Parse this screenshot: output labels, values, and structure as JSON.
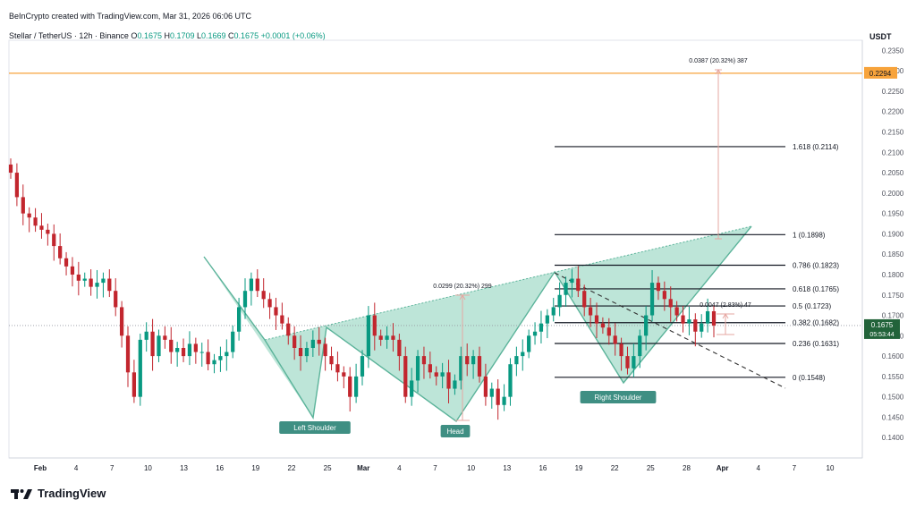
{
  "header": {
    "credit": "BeInCrypto created with TradingView.com, Mar 31, 2026 06:06 UTC",
    "symbol": "Stellar / TetherUS · 12h · Binance",
    "ohlc": [
      {
        "k": "O",
        "v": "0.1675"
      },
      {
        "k": "H",
        "v": "0.1709"
      },
      {
        "k": "L",
        "v": "0.1669"
      },
      {
        "k": "C",
        "v": "0.1675"
      }
    ],
    "change": "+0.0001 (+0.06%)",
    "unit": "USDT"
  },
  "logo": {
    "text": "TradingView"
  },
  "colors": {
    "up": "#089981",
    "down": "#c2262e",
    "pattern_fill": "#a7dccb",
    "pattern_stroke": "#5bb39a",
    "target_line": "#f7a33b",
    "measure": "#e6a7a2",
    "fib": "#131722"
  },
  "chart_data": {
    "type": "candlestick",
    "ylim": [
      0.135,
      0.2375
    ],
    "y_ticks": [
      "0.1400",
      "0.1450",
      "0.1500",
      "0.1550",
      "0.1600",
      "0.1650",
      "0.1700",
      "0.1750",
      "0.1800",
      "0.1850",
      "0.1900",
      "0.1950",
      "0.2000",
      "0.2050",
      "0.2100",
      "0.2150",
      "0.2200",
      "0.2250",
      "0.2300",
      "0.2350"
    ],
    "x_ticks": [
      "Feb",
      "4",
      "7",
      "10",
      "13",
      "16",
      "19",
      "22",
      "25",
      "Mar",
      "4",
      "7",
      "10",
      "13",
      "16",
      "19",
      "22",
      "25",
      "28",
      "Apr",
      "4",
      "7",
      "10"
    ],
    "closes": [
      0.205,
      0.199,
      0.195,
      0.194,
      0.192,
      0.191,
      0.19,
      0.187,
      0.184,
      0.182,
      0.18,
      0.1785,
      0.179,
      0.177,
      0.178,
      0.179,
      0.176,
      0.172,
      0.165,
      0.156,
      0.15,
      0.164,
      0.166,
      0.16,
      0.165,
      0.164,
      0.161,
      0.162,
      0.16,
      0.163,
      0.161,
      0.161,
      0.158,
      0.159,
      0.16,
      0.161,
      0.166,
      0.172,
      0.176,
      0.179,
      0.176,
      0.174,
      0.172,
      0.17,
      0.168,
      0.165,
      0.162,
      0.16,
      0.162,
      0.164,
      0.163,
      0.16,
      0.158,
      0.156,
      0.155,
      0.15,
      0.155,
      0.16,
      0.17,
      0.165,
      0.164,
      0.165,
      0.164,
      0.16,
      0.15,
      0.154,
      0.16,
      0.158,
      0.156,
      0.155,
      0.156,
      0.152,
      0.154,
      0.16,
      0.158,
      0.16,
      0.155,
      0.15,
      0.152,
      0.148,
      0.15,
      0.158,
      0.16,
      0.161,
      0.165,
      0.166,
      0.168,
      0.17,
      0.172,
      0.175,
      0.178,
      0.179,
      0.176,
      0.172,
      0.17,
      0.168,
      0.167,
      0.165,
      0.163,
      0.16,
      0.157,
      0.16,
      0.165,
      0.17,
      0.178,
      0.176,
      0.174,
      0.172,
      0.17,
      0.168,
      0.169,
      0.166,
      0.168,
      0.171,
      0.1675
    ],
    "target_price": "0.2294",
    "last_price": "0.1675",
    "countdown": "05:53:44",
    "fib_levels": [
      {
        "label": "1.618 (0.2114)",
        "value": 0.2114
      },
      {
        "label": "1 (0.1898)",
        "value": 0.1898
      },
      {
        "label": "0.786 (0.1823)",
        "value": 0.1823
      },
      {
        "label": "0.618 (0.1765)",
        "value": 0.1765
      },
      {
        "label": "0.5 (0.1723)",
        "value": 0.1723
      },
      {
        "label": "0.382 (0.1682)",
        "value": 0.1682
      },
      {
        "label": "0.236 (0.1631)",
        "value": 0.1631
      },
      {
        "label": "0 (0.1548)",
        "value": 0.1548
      }
    ],
    "annotations": {
      "measure_top": "0.0387 (20.32%) 387",
      "measure_mid": "0.0299 (20.32%) 299",
      "measure_small": "0.0047 (2.83%) 47",
      "left_shoulder": "Left Shoulder",
      "head": "Head",
      "right_shoulder": "Right Shoulder"
    }
  }
}
